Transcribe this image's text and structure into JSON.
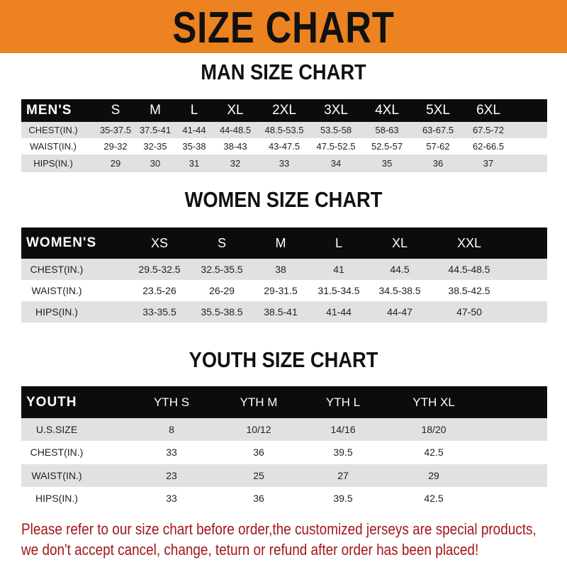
{
  "banner": {
    "title": "SIZE CHART",
    "color": "#ec8320"
  },
  "men": {
    "title": "MAN SIZE CHART",
    "header": [
      "MEN'S",
      "S",
      "M",
      "L",
      "XL",
      "2XL",
      "3XL",
      "4XL",
      "5XL",
      "6XL"
    ],
    "rows": [
      [
        "CHEST(IN.)",
        "35-37.5",
        "37.5-41",
        "41-44",
        "44-48.5",
        "48.5-53.5",
        "53.5-58",
        "58-63",
        "63-67.5",
        "67.5-72"
      ],
      [
        "WAIST(IN.)",
        "29-32",
        "32-35",
        "35-38",
        "38-43",
        "43-47.5",
        "47.5-52.5",
        "52.5-57",
        "57-62",
        "62-66.5"
      ],
      [
        "HIPS(IN.)",
        "29",
        "30",
        "31",
        "32",
        "33",
        "34",
        "35",
        "36",
        "37"
      ]
    ]
  },
  "women": {
    "title": "WOMEN SIZE CHART",
    "header": [
      "WOMEN'S",
      "XS",
      "S",
      "M",
      "L",
      "XL",
      "XXL"
    ],
    "rows": [
      [
        "CHEST(IN.)",
        "29.5-32.5",
        "32.5-35.5",
        "38",
        "41",
        "44.5",
        "44.5-48.5"
      ],
      [
        "WAIST(IN.)",
        "23.5-26",
        "26-29",
        "29-31.5",
        "31.5-34.5",
        "34.5-38.5",
        "38.5-42.5"
      ],
      [
        "HIPS(IN.)",
        "33-35.5",
        "35.5-38.5",
        "38.5-41",
        "41-44",
        "44-47",
        "47-50"
      ]
    ]
  },
  "youth": {
    "title": "YOUTH SIZE CHART",
    "header": [
      "YOUTH",
      "YTH S",
      "YTH M",
      "YTH L",
      "YTH XL"
    ],
    "rows": [
      [
        "U.S.SIZE",
        "8",
        "10/12",
        "14/16",
        "18/20"
      ],
      [
        "CHEST(IN.)",
        "33",
        "36",
        "39.5",
        "42.5"
      ],
      [
        "WAIST(IN.)",
        "23",
        "25",
        "27",
        "29"
      ],
      [
        "HIPS(IN.)",
        "33",
        "36",
        "39.5",
        "42.5"
      ]
    ]
  },
  "notice": {
    "line1": "Please refer to our size chart before order,the customized jerseys are special products,",
    "line2": "we don't accept cancel, change, teturn or refund after order has been placed!",
    "color": "#a3161a"
  }
}
